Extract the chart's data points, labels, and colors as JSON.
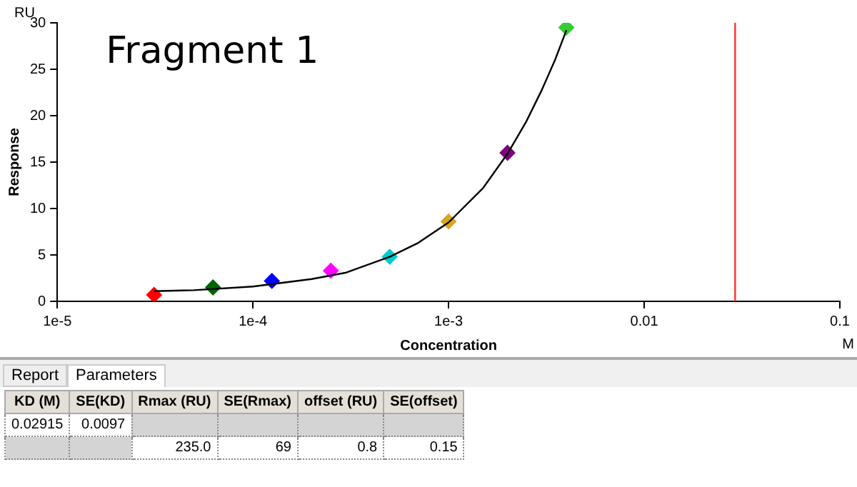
{
  "chart_data": {
    "type": "scatter",
    "title": "Fragment 1",
    "xlabel": "Concentration",
    "ylabel": "Response",
    "annotations": [
      "RU",
      "M",
      "Report",
      "Parameters",
      "KD (M)",
      "SE(KD)",
      "Rmax (RU)",
      "SE(Rmax)",
      "offset (RU)",
      "SE(offset)",
      "0.02915",
      "0.0097",
      "235.0",
      "69",
      "0.8",
      "0.15"
    ],
    "log": "x",
    "xlim": [
      1e-05,
      0.1
    ],
    "xticks": [
      {
        "value": 1e-05,
        "label": "1e-5"
      },
      {
        "value": 0.0001,
        "label": "1e-4"
      },
      {
        "value": 0.001,
        "label": "1e-3"
      },
      0.01,
      0.1
    ],
    "ylim": [
      0,
      30
    ],
    "yticks": [
      0,
      5,
      10,
      15,
      20,
      25,
      30
    ],
    "grid": false,
    "legend": false,
    "marker": "diamond",
    "ref_lines": [
      {
        "axis": "x",
        "value": 0.02915,
        "color": "#ff3030"
      }
    ],
    "series": [
      {
        "type": "line",
        "color": "#000000",
        "marker": "none",
        "x": [
          3.125e-05,
          5e-05,
          0.0001,
          0.0002,
          0.0003,
          0.0005,
          0.0007,
          0.001,
          0.0015,
          0.002,
          0.0025,
          0.003,
          0.0035,
          0.004
        ],
        "values": [
          1.1,
          1.2,
          1.6,
          2.4,
          3.1,
          4.8,
          6.3,
          8.5,
          12.2,
          15.9,
          19.4,
          22.8,
          26,
          29.2
        ]
      },
      {
        "type": "scatter",
        "x": [
          3.125e-05,
          6.25e-05,
          0.000125,
          0.00025,
          0.0005,
          0.001,
          0.002,
          0.004
        ],
        "values": [
          0.7,
          1.5,
          2.2,
          3.3,
          4.8,
          8.6,
          16,
          29.5
        ],
        "colors": [
          "#ff0000",
          "#006400",
          "#0000ff",
          "#ff00ff",
          "#00cccc",
          "#daa520",
          "#800080",
          "#32cd32"
        ]
      }
    ]
  }
}
